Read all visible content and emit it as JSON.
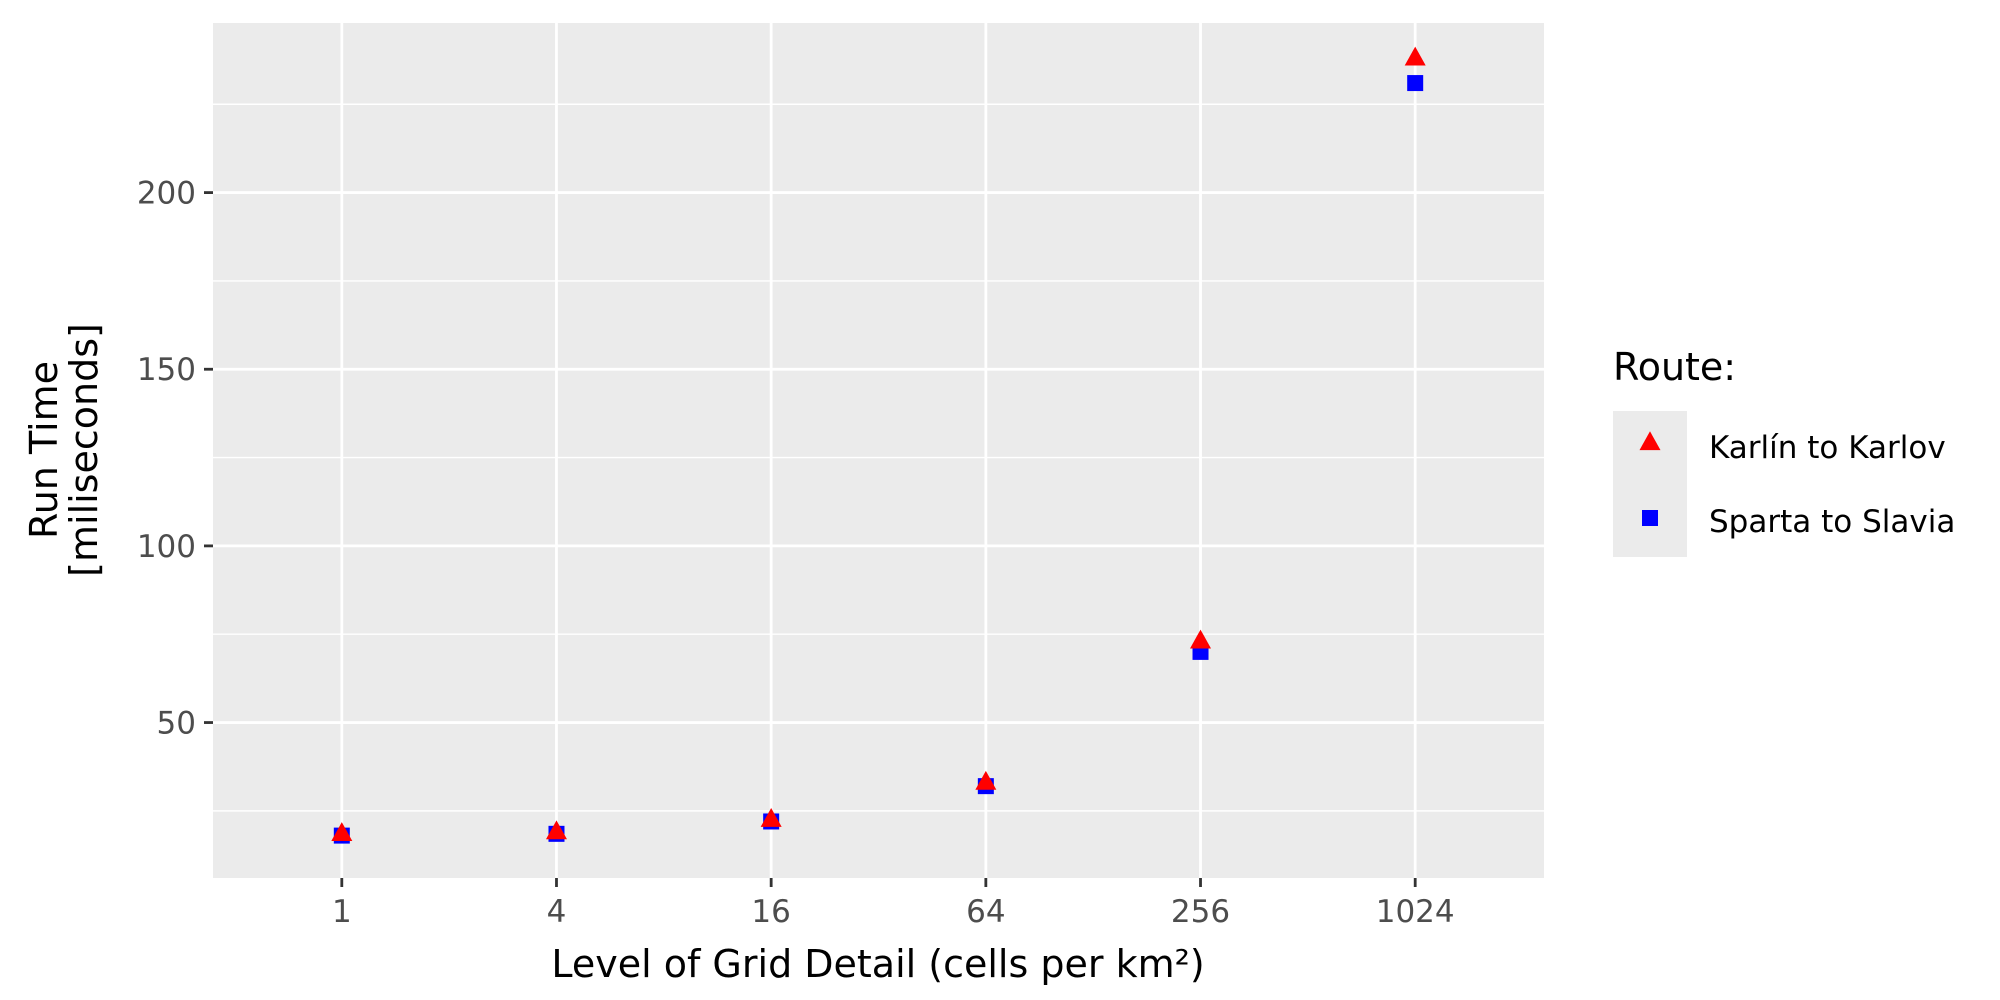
{
  "chart_data": {
    "type": "scatter",
    "title": "",
    "xlabel": "Level of Grid Detail (cells per km²)",
    "ylabel_lines": [
      "Run Time",
      "[miliseconds]"
    ],
    "x_scale": "log2",
    "x": [
      1,
      4,
      16,
      64,
      256,
      1024
    ],
    "x_tick_labels": [
      "1",
      "4",
      "16",
      "64",
      "256",
      "1024"
    ],
    "y_ticks": [
      50,
      100,
      150,
      200
    ],
    "y_tick_labels": [
      "50",
      "100",
      "150",
      "200"
    ],
    "ylim": [
      6,
      248
    ],
    "grid": true,
    "legend_position": "right",
    "legend_title": "Route:",
    "series": [
      {
        "name": "Karlín to Karlov",
        "marker": "triangle",
        "color": "#ff0000",
        "values": [
          18.5,
          19,
          22.5,
          33,
          73,
          238
        ]
      },
      {
        "name": "Sparta to Slavia",
        "marker": "square",
        "color": "#0000ff",
        "values": [
          18,
          18.5,
          22,
          32,
          70,
          231
        ]
      }
    ],
    "panel_background": "#ebebeb",
    "grid_color": "#ffffff"
  }
}
